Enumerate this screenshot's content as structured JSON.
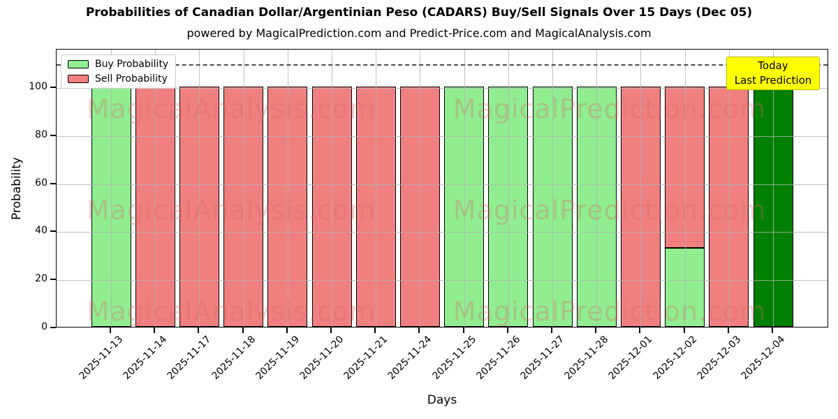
{
  "chart_data": {
    "type": "bar",
    "stacked": true,
    "title": "Probabilities of Canadian Dollar/Argentinian Peso (CADARS) Buy/Sell Signals Over 15 Days (Dec 05)",
    "subtitle": "powered by MagicalPrediction.com and Predict-Price.com and MagicalAnalysis.com",
    "xlabel": "Days",
    "ylabel": "Probability",
    "ylim": [
      0,
      116
    ],
    "yticks": [
      0,
      20,
      40,
      60,
      80,
      100
    ],
    "grid": true,
    "legend_position": "upper left",
    "categories": [
      "2025-11-13",
      "2025-11-14",
      "2025-11-17",
      "2025-11-18",
      "2025-11-19",
      "2025-11-20",
      "2025-11-21",
      "2025-11-24",
      "2025-11-25",
      "2025-11-26",
      "2025-11-27",
      "2025-11-28",
      "2025-12-01",
      "2025-12-02",
      "2025-12-03",
      "2025-12-04"
    ],
    "series": [
      {
        "name": "Buy Probability",
        "color": "#90ee90",
        "values": [
          100,
          0,
          0,
          0,
          0,
          0,
          0,
          0,
          100,
          100,
          100,
          100,
          0,
          33,
          0,
          100
        ]
      },
      {
        "name": "Sell Probability",
        "color": "#f08080",
        "values": [
          0,
          100,
          100,
          100,
          100,
          100,
          100,
          100,
          0,
          0,
          0,
          0,
          100,
          67,
          100,
          0
        ]
      }
    ],
    "today_index": 15,
    "today_buy_color": "#008000",
    "bar_edge_color": "#000000",
    "dashed_line_y": 110,
    "annotation_box": {
      "lines": [
        "Today",
        "Last Prediction"
      ],
      "bg_color": "#ffff00",
      "border_color": "#b8b800"
    },
    "watermarks": {
      "texts": [
        "MagicalAnalysis.com",
        "MagicalPrediction.com"
      ],
      "color": "#d96666",
      "opacity": 0.3
    }
  }
}
